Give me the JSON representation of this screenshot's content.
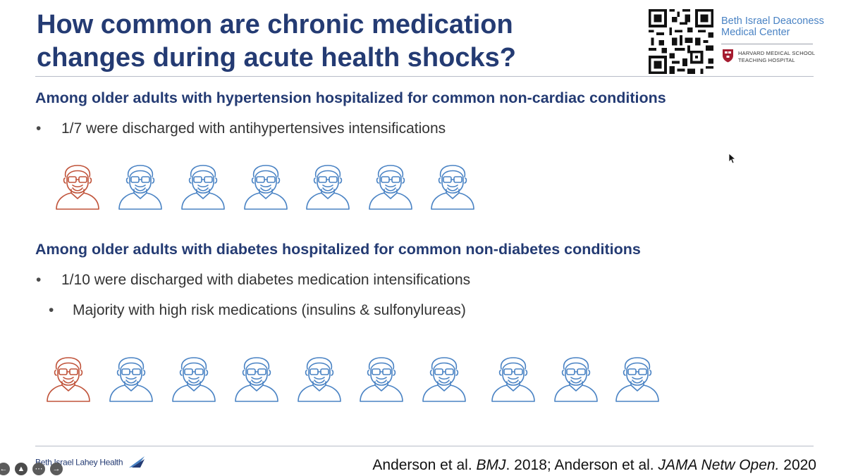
{
  "title": {
    "line1": "How common are chronic medication",
    "line2": "changes during acute health shocks?"
  },
  "logos": {
    "bidmc_line1": "Beth Israel Deaconess",
    "bidmc_line2": "Medical Center",
    "hms_line1": "Harvard Medical School",
    "hms_line2": "Teaching Hospital",
    "footer_brand": "Beth Israel Lahey Health"
  },
  "section1": {
    "heading": "Among older adults with hypertension hospitalized for common non-cardiac conditions",
    "bullet_char": "•",
    "bullet1": "1/7 were discharged with antihypertensives intensifications",
    "people_highlighted": 1,
    "people_total": 7
  },
  "section2": {
    "heading": "Among older adults with diabetes hospitalized for common non-diabetes conditions",
    "bullet_char": "•",
    "bullet1": "1/10 were discharged with diabetes medication intensifications",
    "sub_bullet_char": "•",
    "sub_bullet1": "Majority with high risk medications (insulins & sulfonylureas)",
    "people_highlighted": 1,
    "people_total": 10
  },
  "citation": {
    "part1": "Anderson et al. ",
    "journal1": "BMJ",
    "part2": ". 2018; Anderson et al. ",
    "journal2": "JAMA Netw Open.",
    "part3": " 2020"
  },
  "player": {
    "prev_icon": "arrow-left-icon",
    "pen_icon": "pen-icon",
    "more_icon": "more-icon",
    "next_icon": "arrow-right-icon"
  },
  "colors": {
    "title": "#243b73",
    "highlight_person": "#c0533a",
    "normal_person": "#4a83c4"
  }
}
